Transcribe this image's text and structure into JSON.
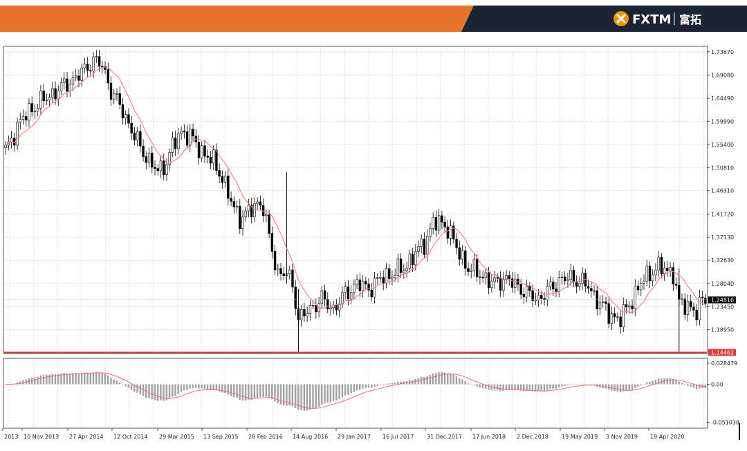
{
  "header": {
    "brand": "FXTM",
    "brand_cn": "富拓",
    "colors": {
      "orange": "#E8732B",
      "navy": "#1B2434"
    }
  },
  "chart_data": [
    {
      "type": "candlestick",
      "title": "",
      "price_ticks": [
        "1.73670",
        "1.69080",
        "1.64490",
        "1.59990",
        "1.55400",
        "1.50810",
        "1.46310",
        "1.41720",
        "1.37130",
        "1.32630",
        "1.28040",
        "1.23450",
        "1.18950"
      ],
      "ylim": [
        1.144,
        1.746
      ],
      "current_price": "1.24816",
      "support_level": {
        "value": 1.14462,
        "label": "1.14462",
        "color": "#E53935"
      },
      "ma_color": "#F08080",
      "x_ticks": [
        "2013",
        "10 Nov 2013",
        "27 Apr 2014",
        "12 Oct 2014",
        "29 Mar 2015",
        "13 Sep 2015",
        "28 Feb 2016",
        "14 Aug 2016",
        "29 Jan 2017",
        "16 Jul 2017",
        "31 Dec 2017",
        "17 Jun 2018",
        "2 Dec 2018",
        "19 May 2019",
        "3 Nov 2019",
        "19 Apr 2020"
      ],
      "close_path": [
        [
          0,
          1.54
        ],
        [
          5,
          1.6
        ],
        [
          10,
          1.63
        ],
        [
          15,
          1.65
        ],
        [
          20,
          1.67
        ],
        [
          25,
          1.69
        ],
        [
          30,
          1.72
        ],
        [
          33,
          1.71
        ],
        [
          36,
          1.66
        ],
        [
          40,
          1.62
        ],
        [
          44,
          1.57
        ],
        [
          48,
          1.53
        ],
        [
          52,
          1.5
        ],
        [
          55,
          1.52
        ],
        [
          57,
          1.55
        ],
        [
          60,
          1.58
        ],
        [
          63,
          1.57
        ],
        [
          67,
          1.54
        ],
        [
          71,
          1.52
        ],
        [
          74,
          1.49
        ],
        [
          77,
          1.44
        ],
        [
          80,
          1.41
        ],
        [
          83,
          1.42
        ],
        [
          86,
          1.44
        ],
        [
          88,
          1.43
        ],
        [
          90,
          1.37
        ],
        [
          93,
          1.3
        ],
        [
          96,
          1.3
        ],
        [
          98,
          1.28
        ],
        [
          100,
          1.21
        ],
        [
          104,
          1.23
        ],
        [
          108,
          1.25
        ],
        [
          112,
          1.23
        ],
        [
          116,
          1.26
        ],
        [
          120,
          1.28
        ],
        [
          124,
          1.27
        ],
        [
          128,
          1.29
        ],
        [
          132,
          1.3
        ],
        [
          136,
          1.31
        ],
        [
          140,
          1.34
        ],
        [
          143,
          1.36
        ],
        [
          146,
          1.4
        ],
        [
          149,
          1.4
        ],
        [
          151,
          1.39
        ],
        [
          154,
          1.35
        ],
        [
          158,
          1.31
        ],
        [
          162,
          1.3
        ],
        [
          166,
          1.28
        ],
        [
          170,
          1.29
        ],
        [
          174,
          1.28
        ],
        [
          178,
          1.26
        ],
        [
          182,
          1.25
        ],
        [
          186,
          1.27
        ],
        [
          190,
          1.29
        ],
        [
          194,
          1.29
        ],
        [
          198,
          1.28
        ],
        [
          202,
          1.25
        ],
        [
          206,
          1.22
        ],
        [
          210,
          1.21
        ],
        [
          214,
          1.25
        ],
        [
          218,
          1.29
        ],
        [
          222,
          1.31
        ],
        [
          225,
          1.31
        ],
        [
          228,
          1.3
        ],
        [
          230,
          1.24
        ],
        [
          233,
          1.24
        ],
        [
          236,
          1.22
        ],
        [
          238,
          1.25
        ]
      ],
      "ma_period": 10,
      "spikes": [
        {
          "index": 100,
          "low": 1.146,
          "high": 1.27
        },
        {
          "index": 230,
          "low": 1.146,
          "high": 1.31
        },
        {
          "index": 96,
          "low": 1.28,
          "high": 1.5
        }
      ]
    },
    {
      "type": "macd",
      "ticks": [
        "0.028479",
        "0.00",
        "-0.051038"
      ],
      "ylim": [
        -0.058,
        0.034
      ],
      "bar_color": "#A0A0A0",
      "signal_color": "#E57373"
    }
  ]
}
